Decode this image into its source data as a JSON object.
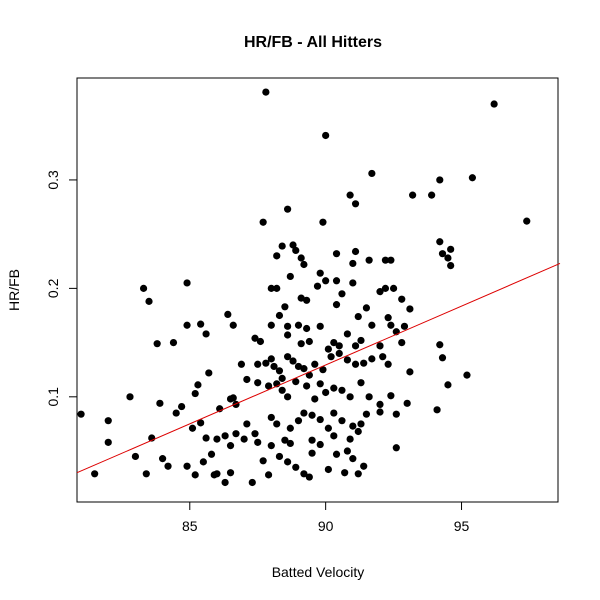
{
  "chart_data": {
    "type": "scatter",
    "title": "HR/FB - All Hitters",
    "xlabel": "Batted Velocity",
    "ylabel": "HR/FB",
    "xlim": [
      80.85,
      98.55
    ],
    "ylim": [
      0.003,
      0.394
    ],
    "xticks": [
      85,
      90,
      95
    ],
    "xtick_labels": [
      "85",
      "90",
      "95"
    ],
    "yticks": [
      0.1,
      0.2,
      0.3
    ],
    "ytick_labels": [
      "0.1",
      "0.2",
      "0.3"
    ],
    "grid": false,
    "legend": null,
    "point_color": "#000000",
    "trendline": {
      "color": "#dd0000",
      "x": [
        80.85,
        98.55
      ],
      "y": [
        0.03,
        0.223
      ]
    },
    "points": [
      [
        87.8,
        0.381
      ],
      [
        90.0,
        0.341
      ],
      [
        96.2,
        0.37
      ],
      [
        91.7,
        0.306
      ],
      [
        95.4,
        0.302
      ],
      [
        94.2,
        0.3
      ],
      [
        90.9,
        0.286
      ],
      [
        91.1,
        0.278
      ],
      [
        93.2,
        0.286
      ],
      [
        93.9,
        0.286
      ],
      [
        88.6,
        0.273
      ],
      [
        87.7,
        0.261
      ],
      [
        89.9,
        0.261
      ],
      [
        97.4,
        0.262
      ],
      [
        88.4,
        0.239
      ],
      [
        88.8,
        0.24
      ],
      [
        88.9,
        0.235
      ],
      [
        89.1,
        0.228
      ],
      [
        89.2,
        0.222
      ],
      [
        88.2,
        0.23
      ],
      [
        89.8,
        0.214
      ],
      [
        90.4,
        0.232
      ],
      [
        91.1,
        0.234
      ],
      [
        91.0,
        0.223
      ],
      [
        91.6,
        0.226
      ],
      [
        92.2,
        0.226
      ],
      [
        92.4,
        0.226
      ],
      [
        94.2,
        0.243
      ],
      [
        94.3,
        0.232
      ],
      [
        94.5,
        0.228
      ],
      [
        94.6,
        0.236
      ],
      [
        94.6,
        0.221
      ],
      [
        83.3,
        0.2
      ],
      [
        83.5,
        0.188
      ],
      [
        84.9,
        0.205
      ],
      [
        83.8,
        0.149
      ],
      [
        84.4,
        0.15
      ],
      [
        84.9,
        0.166
      ],
      [
        85.4,
        0.167
      ],
      [
        85.6,
        0.158
      ],
      [
        86.4,
        0.176
      ],
      [
        86.6,
        0.166
      ],
      [
        87.4,
        0.154
      ],
      [
        87.6,
        0.151
      ],
      [
        88.0,
        0.2
      ],
      [
        88.2,
        0.2
      ],
      [
        88.7,
        0.211
      ],
      [
        88.5,
        0.183
      ],
      [
        88.3,
        0.175
      ],
      [
        89.1,
        0.191
      ],
      [
        89.3,
        0.189
      ],
      [
        89.7,
        0.202
      ],
      [
        90.0,
        0.207
      ],
      [
        90.4,
        0.207
      ],
      [
        90.6,
        0.195
      ],
      [
        90.4,
        0.185
      ],
      [
        91.0,
        0.205
      ],
      [
        91.2,
        0.174
      ],
      [
        91.5,
        0.182
      ],
      [
        92.0,
        0.197
      ],
      [
        92.2,
        0.2
      ],
      [
        92.5,
        0.2
      ],
      [
        92.8,
        0.19
      ],
      [
        93.1,
        0.181
      ],
      [
        92.3,
        0.173
      ],
      [
        92.9,
        0.165
      ],
      [
        92.6,
        0.16
      ],
      [
        88.0,
        0.166
      ],
      [
        88.6,
        0.165
      ],
      [
        88.6,
        0.157
      ],
      [
        89.0,
        0.166
      ],
      [
        89.3,
        0.163
      ],
      [
        89.8,
        0.165
      ],
      [
        89.1,
        0.149
      ],
      [
        89.4,
        0.151
      ],
      [
        90.3,
        0.15
      ],
      [
        90.8,
        0.158
      ],
      [
        90.1,
        0.144
      ],
      [
        90.5,
        0.147
      ],
      [
        91.1,
        0.147
      ],
      [
        91.3,
        0.152
      ],
      [
        91.7,
        0.166
      ],
      [
        92.0,
        0.147
      ],
      [
        92.8,
        0.15
      ],
      [
        92.4,
        0.166
      ],
      [
        81.0,
        0.084
      ],
      [
        82.0,
        0.078
      ],
      [
        82.8,
        0.1
      ],
      [
        83.6,
        0.062
      ],
      [
        83.9,
        0.094
      ],
      [
        84.5,
        0.085
      ],
      [
        84.7,
        0.091
      ],
      [
        85.2,
        0.103
      ],
      [
        85.3,
        0.111
      ],
      [
        85.7,
        0.122
      ],
      [
        86.1,
        0.089
      ],
      [
        86.5,
        0.098
      ],
      [
        86.6,
        0.099
      ],
      [
        86.7,
        0.093
      ],
      [
        86.9,
        0.13
      ],
      [
        87.1,
        0.116
      ],
      [
        87.5,
        0.113
      ],
      [
        87.5,
        0.13
      ],
      [
        87.8,
        0.131
      ],
      [
        87.9,
        0.11
      ],
      [
        88.0,
        0.135
      ],
      [
        88.1,
        0.128
      ],
      [
        88.3,
        0.124
      ],
      [
        88.4,
        0.117
      ],
      [
        88.6,
        0.137
      ],
      [
        88.8,
        0.133
      ],
      [
        89.0,
        0.128
      ],
      [
        89.2,
        0.126
      ],
      [
        89.4,
        0.12
      ],
      [
        89.6,
        0.13
      ],
      [
        89.9,
        0.125
      ],
      [
        90.2,
        0.137
      ],
      [
        90.5,
        0.14
      ],
      [
        90.8,
        0.134
      ],
      [
        91.1,
        0.13
      ],
      [
        91.4,
        0.131
      ],
      [
        91.7,
        0.135
      ],
      [
        92.1,
        0.137
      ],
      [
        92.3,
        0.13
      ],
      [
        93.1,
        0.123
      ],
      [
        88.2,
        0.112
      ],
      [
        88.4,
        0.106
      ],
      [
        88.6,
        0.1
      ],
      [
        88.9,
        0.114
      ],
      [
        89.3,
        0.11
      ],
      [
        89.6,
        0.098
      ],
      [
        89.8,
        0.112
      ],
      [
        90.0,
        0.104
      ],
      [
        90.3,
        0.108
      ],
      [
        90.6,
        0.106
      ],
      [
        90.9,
        0.1
      ],
      [
        91.3,
        0.113
      ],
      [
        91.6,
        0.1
      ],
      [
        92.0,
        0.093
      ],
      [
        92.4,
        0.101
      ],
      [
        93.0,
        0.094
      ],
      [
        94.2,
        0.148
      ],
      [
        94.3,
        0.136
      ],
      [
        94.5,
        0.111
      ],
      [
        95.2,
        0.12
      ],
      [
        81.5,
        0.029
      ],
      [
        82.0,
        0.058
      ],
      [
        83.0,
        0.045
      ],
      [
        83.4,
        0.029
      ],
      [
        84.0,
        0.043
      ],
      [
        84.2,
        0.036
      ],
      [
        84.9,
        0.036
      ],
      [
        85.2,
        0.028
      ],
      [
        85.5,
        0.04
      ],
      [
        85.8,
        0.047
      ],
      [
        86.0,
        0.029
      ],
      [
        86.3,
        0.021
      ],
      [
        86.5,
        0.055
      ],
      [
        86.7,
        0.066
      ],
      [
        87.0,
        0.061
      ],
      [
        87.3,
        0.021
      ],
      [
        87.4,
        0.066
      ],
      [
        87.7,
        0.041
      ],
      [
        85.1,
        0.071
      ],
      [
        85.4,
        0.076
      ],
      [
        85.6,
        0.062
      ],
      [
        86.0,
        0.061
      ],
      [
        86.3,
        0.064
      ],
      [
        87.1,
        0.075
      ],
      [
        87.5,
        0.058
      ],
      [
        88.0,
        0.081
      ],
      [
        88.2,
        0.075
      ],
      [
        88.5,
        0.06
      ],
      [
        88.7,
        0.071
      ],
      [
        89.0,
        0.078
      ],
      [
        89.2,
        0.085
      ],
      [
        89.5,
        0.083
      ],
      [
        89.8,
        0.079
      ],
      [
        90.1,
        0.071
      ],
      [
        90.3,
        0.085
      ],
      [
        90.6,
        0.078
      ],
      [
        91.0,
        0.073
      ],
      [
        91.2,
        0.068
      ],
      [
        91.5,
        0.084
      ],
      [
        92.0,
        0.086
      ],
      [
        92.6,
        0.084
      ],
      [
        94.1,
        0.088
      ],
      [
        88.3,
        0.045
      ],
      [
        88.6,
        0.04
      ],
      [
        88.9,
        0.035
      ],
      [
        89.2,
        0.029
      ],
      [
        89.5,
        0.048
      ],
      [
        89.8,
        0.056
      ],
      [
        90.1,
        0.033
      ],
      [
        90.4,
        0.047
      ],
      [
        90.8,
        0.05
      ],
      [
        91.0,
        0.043
      ],
      [
        91.2,
        0.029
      ],
      [
        91.4,
        0.036
      ],
      [
        92.6,
        0.053
      ],
      [
        88.0,
        0.055
      ],
      [
        88.7,
        0.057
      ],
      [
        89.5,
        0.06
      ],
      [
        90.3,
        0.064
      ],
      [
        90.9,
        0.061
      ],
      [
        91.3,
        0.075
      ],
      [
        85.9,
        0.028
      ],
      [
        86.5,
        0.03
      ],
      [
        87.9,
        0.028
      ],
      [
        89.4,
        0.026
      ],
      [
        90.7,
        0.03
      ]
    ]
  }
}
